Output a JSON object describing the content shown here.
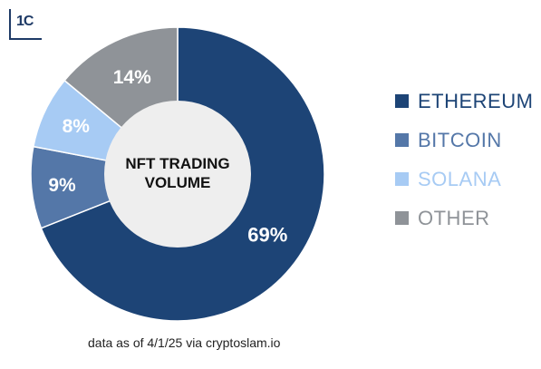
{
  "logo": {
    "text": "1C"
  },
  "chart_data": {
    "type": "pie",
    "variant": "donut",
    "title": "NFT TRADING VOLUME",
    "title_lines": [
      "NFT TRADING",
      "VOLUME"
    ],
    "categories": [
      "ETHEREUM",
      "BITCOIN",
      "SOLANA",
      "OTHER"
    ],
    "values": [
      69,
      9,
      8,
      14
    ],
    "labels": [
      "69%",
      "9%",
      "8%",
      "14%"
    ],
    "colors": [
      "#1d4476",
      "#5477a8",
      "#a7cbf4",
      "#8f9398"
    ],
    "legend_position": "right"
  },
  "source_note": "data as of 4/1/25 via cryptoslam.io"
}
